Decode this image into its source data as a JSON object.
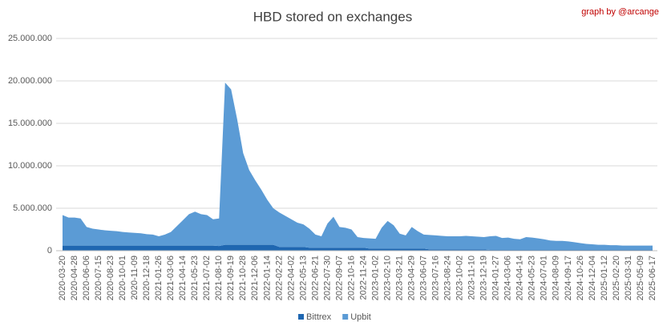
{
  "chart_data": {
    "type": "area",
    "stacked": true,
    "title": "HBD stored on exchanges",
    "annotation": "graph by @arcange",
    "categories": [
      "2020-03-20",
      null,
      "2020-04-28",
      null,
      "2020-06-06",
      null,
      "2020-07-15",
      null,
      "2020-08-23",
      null,
      "2020-10-01",
      null,
      "2020-11-09",
      null,
      "2020-12-18",
      null,
      "2021-01-26",
      null,
      "2021-03-06",
      null,
      "2021-04-14",
      null,
      "2021-05-23",
      null,
      "2021-07-02",
      null,
      "2021-08-10",
      null,
      "2021-09-19",
      null,
      "2021-10-28",
      null,
      "2021-12-06",
      null,
      "2022-01-14",
      null,
      "2022-02-22",
      null,
      "2022-04-02",
      null,
      "2022-05-13",
      null,
      "2022-06-21",
      null,
      "2022-07-30",
      null,
      "2022-09-07",
      null,
      "2022-10-16",
      null,
      "2022-11-24",
      null,
      "2023-01-02",
      null,
      "2023-02-10",
      null,
      "2023-03-21",
      null,
      "2023-04-29",
      null,
      "2023-06-07",
      null,
      "2023-07-16",
      null,
      "2023-08-24",
      null,
      "2023-10-02",
      null,
      "2023-11-10",
      null,
      "2023-12-19",
      null,
      "2024-01-27",
      null,
      "2024-03-06",
      null,
      "2024-04-14",
      null,
      "2024-05-23",
      null,
      "2024-07-01",
      null,
      "2024-08-09",
      null,
      "2024-09-17",
      null,
      "2024-10-26",
      null,
      "2024-12-04",
      null,
      "2025-01-12",
      null,
      "2025-02-20",
      null,
      "2025-03-31",
      null,
      "2025-05-09",
      null,
      "2025-06-17"
    ],
    "series": [
      {
        "name": "Bittrex",
        "color": "#1f67b1",
        "values": [
          600000,
          600000,
          600000,
          600000,
          600000,
          600000,
          600000,
          600000,
          600000,
          600000,
          600000,
          600000,
          600000,
          600000,
          600000,
          600000,
          600000,
          600000,
          600000,
          600000,
          600000,
          600000,
          600000,
          600000,
          600000,
          600000,
          550000,
          700000,
          700000,
          700000,
          700000,
          700000,
          700000,
          700000,
          700000,
          700000,
          450000,
          450000,
          450000,
          450000,
          450000,
          350000,
          350000,
          350000,
          350000,
          350000,
          350000,
          350000,
          350000,
          350000,
          350000,
          250000,
          250000,
          250000,
          250000,
          250000,
          250000,
          250000,
          250000,
          250000,
          250000,
          150000,
          150000,
          150000,
          150000,
          150000,
          150000,
          150000,
          150000,
          150000,
          150000,
          100000,
          100000,
          100000,
          100000,
          100000,
          100000,
          100000,
          100000,
          100000,
          100000,
          100000,
          100000,
          100000,
          100000,
          100000,
          100000,
          100000,
          100000,
          100000,
          100000,
          100000,
          100000,
          100000,
          100000,
          100000,
          100000,
          100000,
          100000
        ]
      },
      {
        "name": "Upbit",
        "color": "#5b9bd5",
        "values": [
          3600000,
          3300000,
          3300000,
          3200000,
          2200000,
          2000000,
          1900000,
          1800000,
          1750000,
          1700000,
          1600000,
          1550000,
          1500000,
          1450000,
          1350000,
          1300000,
          1100000,
          1300000,
          1600000,
          2300000,
          3000000,
          3700000,
          4000000,
          3700000,
          3600000,
          3100000,
          3250000,
          19100000,
          18300000,
          14800000,
          10800000,
          8800000,
          7600000,
          6500000,
          5300000,
          4300000,
          4050000,
          3650000,
          3250000,
          2850000,
          2650000,
          2250000,
          1550000,
          1350000,
          2850000,
          3650000,
          2450000,
          2350000,
          2150000,
          1250000,
          1150000,
          1200000,
          1150000,
          2450000,
          3250000,
          2750000,
          1750000,
          1550000,
          2550000,
          2050000,
          1650000,
          1700000,
          1650000,
          1600000,
          1550000,
          1550000,
          1550000,
          1600000,
          1550000,
          1500000,
          1450000,
          1600000,
          1650000,
          1400000,
          1450000,
          1300000,
          1250000,
          1500000,
          1450000,
          1350000,
          1250000,
          1100000,
          1050000,
          1050000,
          1000000,
          900000,
          800000,
          700000,
          650000,
          600000,
          600000,
          550000,
          550000,
          500000,
          500000,
          500000,
          500000,
          500000,
          500000
        ]
      }
    ],
    "ylim": [
      0,
      25000000
    ],
    "yticks": [
      0,
      {
        "value": 5000000,
        "label": "5.000.000"
      },
      {
        "value": 10000000,
        "label": "10.000.000"
      },
      {
        "value": 15000000,
        "label": "15.000.000"
      },
      {
        "value": 20000000,
        "label": "20.000.000"
      },
      {
        "value": 25000000,
        "label": "25.000.000"
      }
    ],
    "grid": true,
    "legend": "bottom"
  }
}
